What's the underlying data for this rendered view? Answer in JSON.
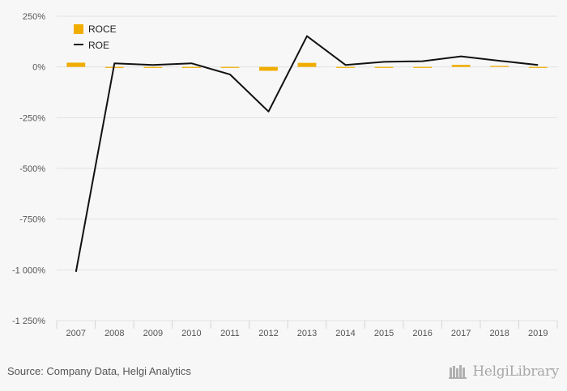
{
  "chart_data": {
    "type": "bar+line",
    "categories": [
      "2007",
      "2008",
      "2009",
      "2010",
      "2011",
      "2012",
      "2013",
      "2014",
      "2015",
      "2016",
      "2017",
      "2018",
      "2019"
    ],
    "series": [
      {
        "name": "ROCE",
        "type": "bar",
        "color": "#f0ad00",
        "values": [
          21,
          -3,
          -3,
          -3,
          -4,
          -19,
          20,
          -3,
          -3,
          -2,
          10,
          5,
          -3
        ]
      },
      {
        "name": "ROE",
        "type": "line",
        "color": "#111111",
        "values": [
          -1010,
          18,
          10,
          18,
          -37,
          -220,
          152,
          10,
          25,
          28,
          52,
          30,
          10
        ]
      }
    ],
    "yticks": [
      "250%",
      "0%",
      "-250%",
      "-500%",
      "-750%",
      "-1 000%",
      "-1 250%"
    ],
    "ytick_values": [
      250,
      0,
      -250,
      -500,
      -750,
      -1000,
      -1250
    ],
    "ylim": [
      -1250,
      250
    ],
    "grid": true,
    "legend_position": "top-left"
  },
  "footer": {
    "source": "Source: Company Data, Helgi Analytics",
    "brand": "HelgiLibrary",
    "brand_icon": "library-books-icon"
  }
}
